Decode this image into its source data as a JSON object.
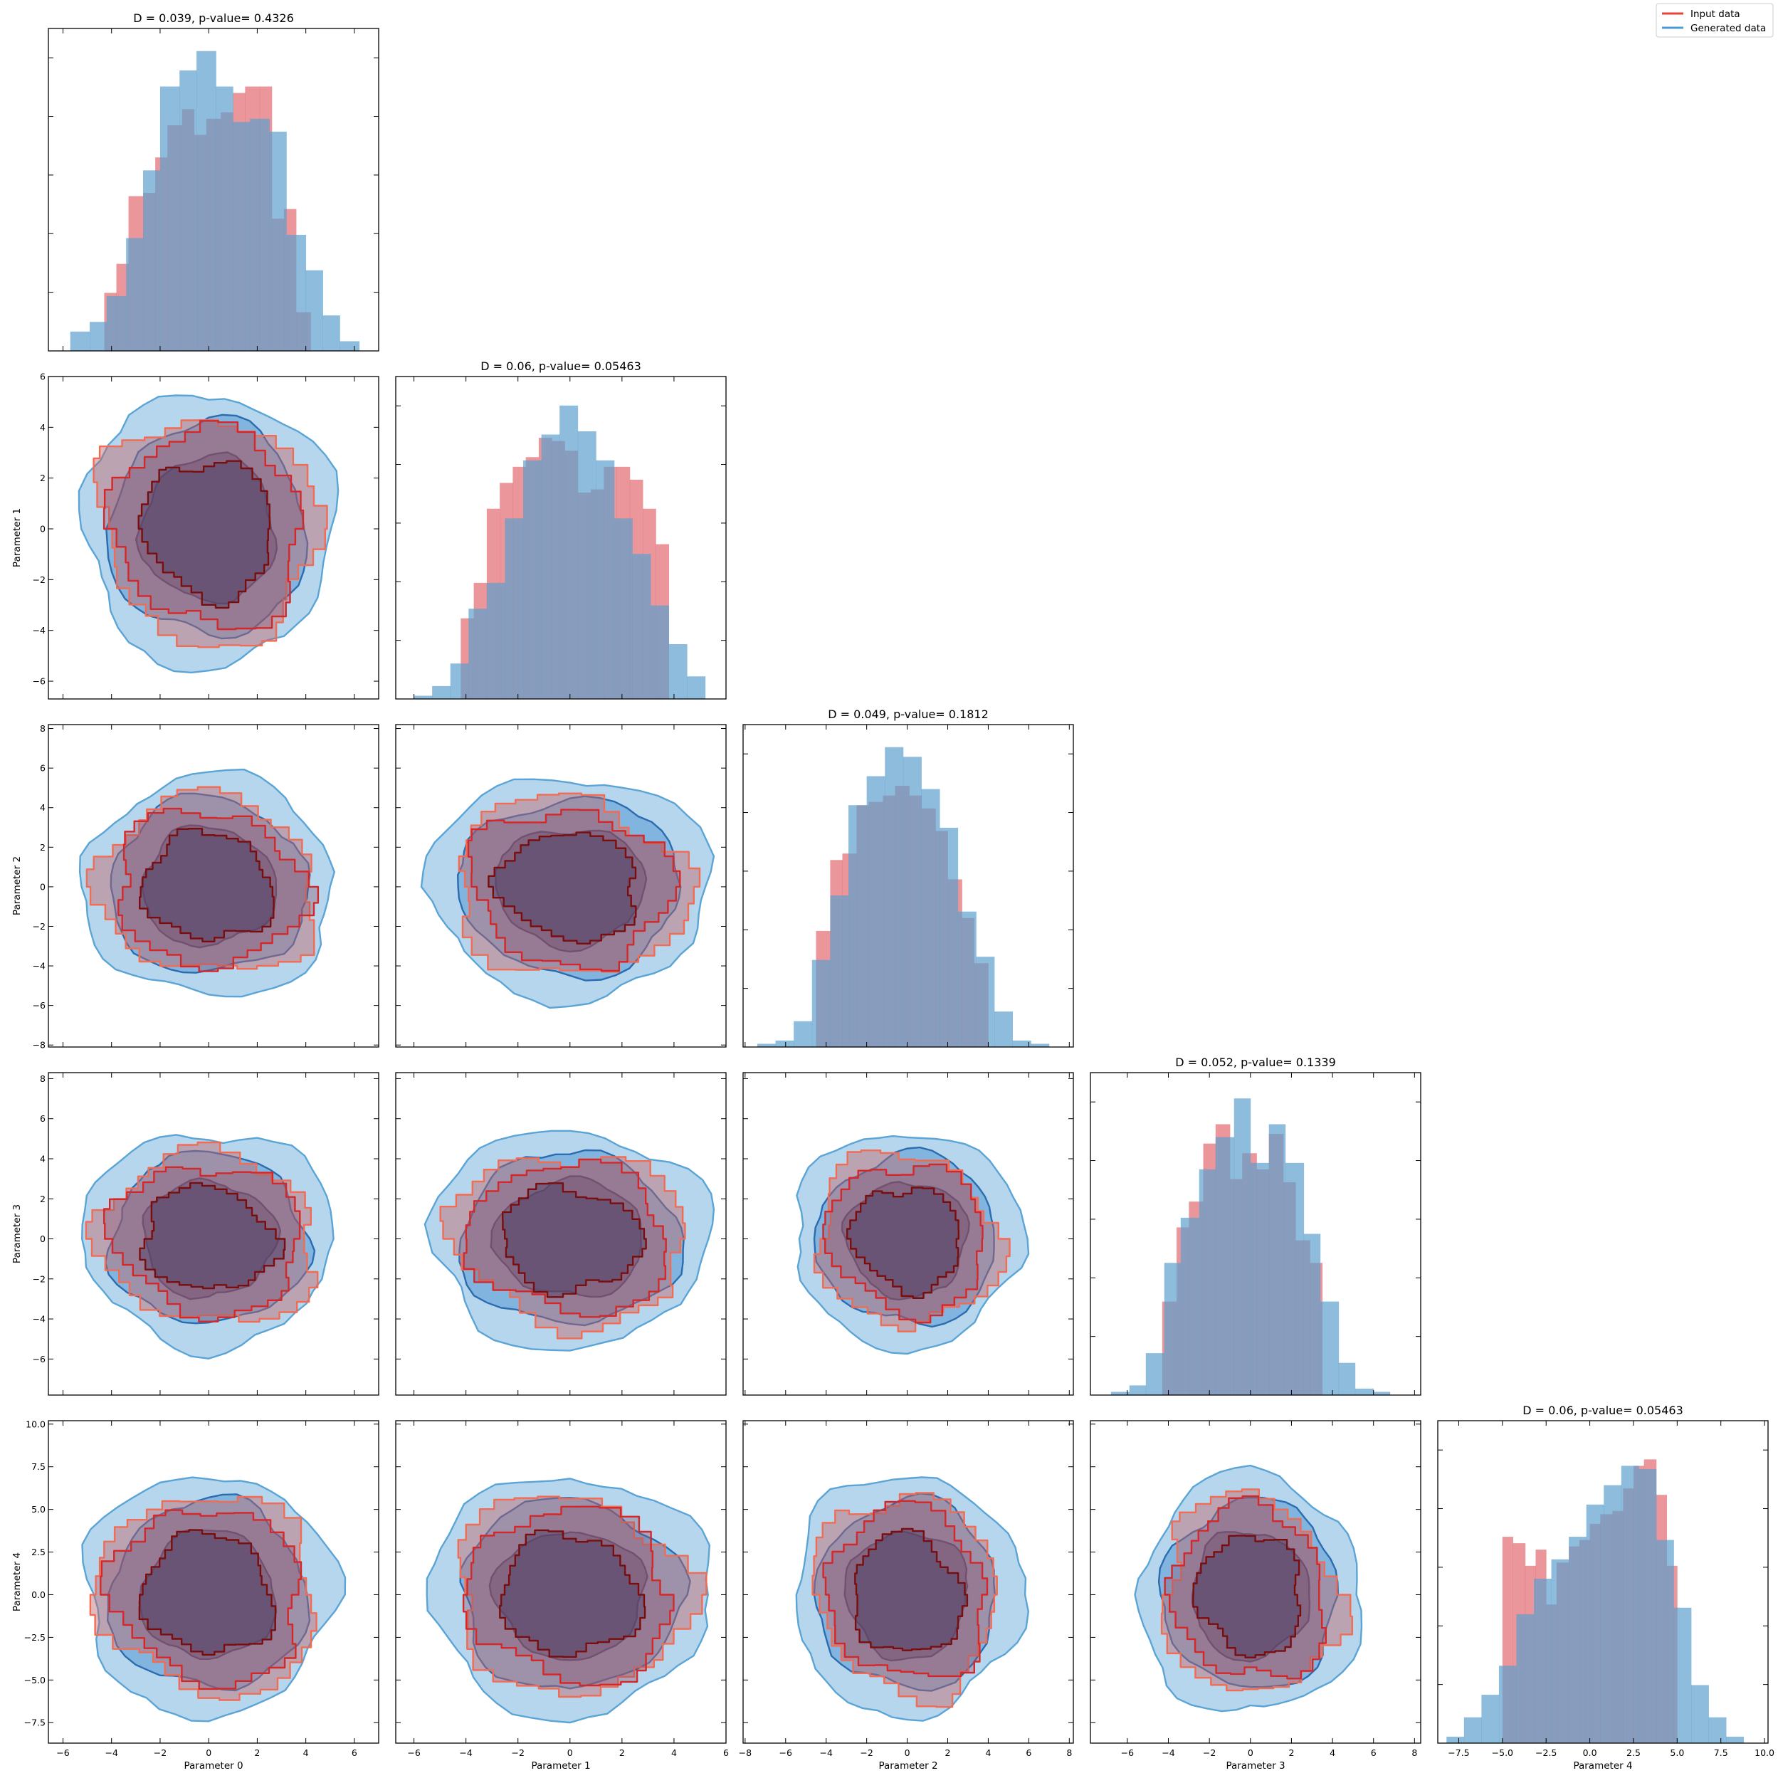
{
  "chart_data": {
    "type": "corner",
    "legend": {
      "placement": "top-right",
      "entries": [
        {
          "name": "Input data",
          "color": "#e8413a"
        },
        {
          "name": "Generated data",
          "color": "#4d9bd4"
        }
      ]
    },
    "colors": {
      "input_hist": "#e36a6f",
      "generated_hist": "#5e9fcd",
      "input_contour_outer": "#f26b53",
      "input_contour_mid": "#d62728",
      "input_contour_inner": "#7a0e0e",
      "generated_fill_outer": "#a9cfea",
      "generated_fill_mid": "#6fa8d8",
      "generated_fill_inner": "#254f8c",
      "generated_line_outer": "#5aa4d6",
      "generated_line_mid": "#2b6cb0",
      "generated_line_inner": "#1b3f7a"
    },
    "parameters": [
      {
        "label": "Parameter 0",
        "range": [
          -6.6,
          7.0
        ],
        "ticks": [
          -6,
          -4,
          -2,
          0,
          2,
          4,
          6
        ],
        "tick_labels": [
          "−6",
          "−4",
          "−2",
          "0",
          "2",
          "4",
          "6"
        ]
      },
      {
        "label": "Parameter 1",
        "range": [
          -6.7,
          6.0
        ],
        "ticks": [
          -6,
          -4,
          -2,
          0,
          2,
          4,
          6
        ],
        "tick_labels": [
          "−6",
          "−4",
          "−2",
          "0",
          "2",
          "4",
          "6"
        ]
      },
      {
        "label": "Parameter 2",
        "range": [
          -8.1,
          8.2
        ],
        "ticks": [
          -8,
          -6,
          -4,
          -2,
          0,
          2,
          4,
          6,
          8
        ],
        "tick_labels": [
          "−8",
          "−6",
          "−4",
          "−2",
          "0",
          "2",
          "4",
          "6",
          "8"
        ]
      },
      {
        "label": "Parameter 3",
        "range": [
          -7.8,
          8.3
        ],
        "ticks": [
          -6,
          -4,
          -2,
          0,
          2,
          4,
          6,
          8
        ],
        "tick_labels": [
          "−6",
          "−4",
          "−2",
          "0",
          "2",
          "4",
          "6",
          "8"
        ]
      },
      {
        "label": "Parameter 4",
        "range": [
          -8.7,
          10.2
        ],
        "ticks": [
          -7.5,
          -5.0,
          -2.5,
          0.0,
          2.5,
          5.0,
          7.5,
          10.0
        ],
        "tick_labels": [
          "−7.5",
          "−5.0",
          "−2.5",
          "0.0",
          "2.5",
          "5.0",
          "7.5",
          "10.0"
        ]
      }
    ],
    "diagonal": [
      {
        "title": "D = 0.039, p-value= 0.4326",
        "input_bins": [
          -4.3,
          -3.8,
          -3.3,
          -2.7,
          -2.2,
          -1.7,
          -1.1,
          -0.6,
          -0.1,
          0.5,
          1.0,
          1.5,
          2.1,
          2.6,
          3.1,
          3.6,
          4.2
        ],
        "input_heights": [
          0.18,
          0.27,
          0.48,
          0.49,
          0.6,
          0.7,
          0.75,
          0.67,
          0.72,
          0.74,
          0.8,
          0.82,
          0.82,
          0.41,
          0.44,
          0.12
        ],
        "generated_bins": [
          -5.7,
          -4.9,
          -4.2,
          -3.4,
          -2.7,
          -2.0,
          -1.2,
          -0.5,
          0.3,
          1.0,
          1.7,
          2.5,
          3.2,
          4.0,
          4.7,
          5.4,
          6.2
        ],
        "generated_heights": [
          0.06,
          0.09,
          0.17,
          0.35,
          0.56,
          0.82,
          0.87,
          0.93,
          0.82,
          0.71,
          0.72,
          0.68,
          0.36,
          0.25,
          0.11,
          0.03
        ]
      },
      {
        "title": "D = 0.06, p-value= 0.05463",
        "input_bins": [
          -4.2,
          -3.7,
          -3.2,
          -2.7,
          -2.2,
          -1.7,
          -1.2,
          -0.7,
          -0.2,
          0.3,
          0.8,
          1.3,
          1.8,
          2.3,
          2.8,
          3.3,
          3.8
        ],
        "input_heights": [
          0.25,
          0.36,
          0.59,
          0.67,
          0.72,
          0.75,
          0.81,
          0.8,
          0.77,
          0.64,
          0.65,
          0.72,
          0.72,
          0.68,
          0.59,
          0.48
        ],
        "generated_bins": [
          -6.0,
          -5.3,
          -4.6,
          -3.9,
          -3.2,
          -2.5,
          -1.8,
          -1.1,
          -0.4,
          0.3,
          1.0,
          1.7,
          2.4,
          3.1,
          3.8,
          4.5,
          5.2
        ],
        "generated_heights": [
          0.01,
          0.04,
          0.11,
          0.28,
          0.36,
          0.56,
          0.74,
          0.82,
          0.91,
          0.83,
          0.74,
          0.56,
          0.45,
          0.29,
          0.17,
          0.07
        ]
      },
      {
        "title": "D = 0.049, p-value= 0.1812",
        "input_bins": [
          -4.5,
          -3.8,
          -3.2,
          -2.5,
          -1.9,
          -1.2,
          -0.6,
          0.1,
          0.7,
          1.4,
          2.0,
          2.7,
          3.3,
          4.0
        ],
        "input_heights": [
          0.36,
          0.58,
          0.6,
          0.75,
          0.76,
          0.78,
          0.81,
          0.78,
          0.74,
          0.67,
          0.52,
          0.4,
          0.26
        ],
        "generated_bins": [
          -7.4,
          -6.5,
          -5.6,
          -4.7,
          -3.8,
          -2.9,
          -2.0,
          -1.1,
          -0.2,
          0.7,
          1.6,
          2.5,
          3.4,
          4.3,
          5.2,
          6.1,
          7.0
        ],
        "generated_heights": [
          0.01,
          0.02,
          0.08,
          0.27,
          0.47,
          0.75,
          0.84,
          0.93,
          0.9,
          0.8,
          0.68,
          0.42,
          0.28,
          0.11,
          0.02,
          0.01
        ]
      },
      {
        "title": "D = 0.052, p-value= 0.1339",
        "input_bins": [
          -4.3,
          -3.6,
          -3.0,
          -2.3,
          -1.7,
          -1.0,
          -0.4,
          0.3,
          0.9,
          1.6,
          2.2,
          2.9,
          3.5
        ],
        "input_heights": [
          0.29,
          0.52,
          0.6,
          0.78,
          0.84,
          0.67,
          0.75,
          0.7,
          0.81,
          0.66,
          0.48,
          0.41
        ],
        "generated_bins": [
          -6.8,
          -5.9,
          -5.1,
          -4.2,
          -3.4,
          -2.5,
          -1.7,
          -0.8,
          0.0,
          0.9,
          1.7,
          2.6,
          3.4,
          4.3,
          5.1,
          6.0,
          6.8
        ],
        "generated_heights": [
          0.01,
          0.03,
          0.13,
          0.41,
          0.55,
          0.7,
          0.8,
          0.92,
          0.72,
          0.84,
          0.72,
          0.5,
          0.29,
          0.1,
          0.02,
          0.01
        ]
      },
      {
        "title": "D = 0.06, p-value= 0.05463",
        "input_bins": [
          -5.0,
          -4.4,
          -3.7,
          -3.1,
          -2.5,
          -1.9,
          -1.2,
          -0.6,
          0.0,
          0.6,
          1.3,
          1.9,
          2.5,
          3.1,
          3.8,
          4.4,
          5.0
        ],
        "input_heights": [
          0.64,
          0.62,
          0.55,
          0.6,
          0.43,
          0.56,
          0.61,
          0.63,
          0.68,
          0.71,
          0.72,
          0.79,
          0.86,
          0.88,
          0.77,
          0.55
        ],
        "generated_bins": [
          -8.2,
          -7.2,
          -6.2,
          -5.2,
          -4.2,
          -3.2,
          -2.2,
          -1.2,
          -0.2,
          0.8,
          1.8,
          2.8,
          3.8,
          4.8,
          5.8,
          6.8,
          7.8,
          8.8
        ],
        "generated_heights": [
          0.02,
          0.08,
          0.15,
          0.24,
          0.4,
          0.51,
          0.57,
          0.64,
          0.74,
          0.8,
          0.86,
          0.85,
          0.63,
          0.42,
          0.18,
          0.08,
          0.02
        ]
      }
    ],
    "offdiag_sigma": {
      "generated": [
        2.2,
        2.3,
        2.4,
        2.3,
        3.0
      ],
      "input": [
        2.0,
        2.0,
        2.0,
        1.9,
        2.6
      ]
    }
  }
}
